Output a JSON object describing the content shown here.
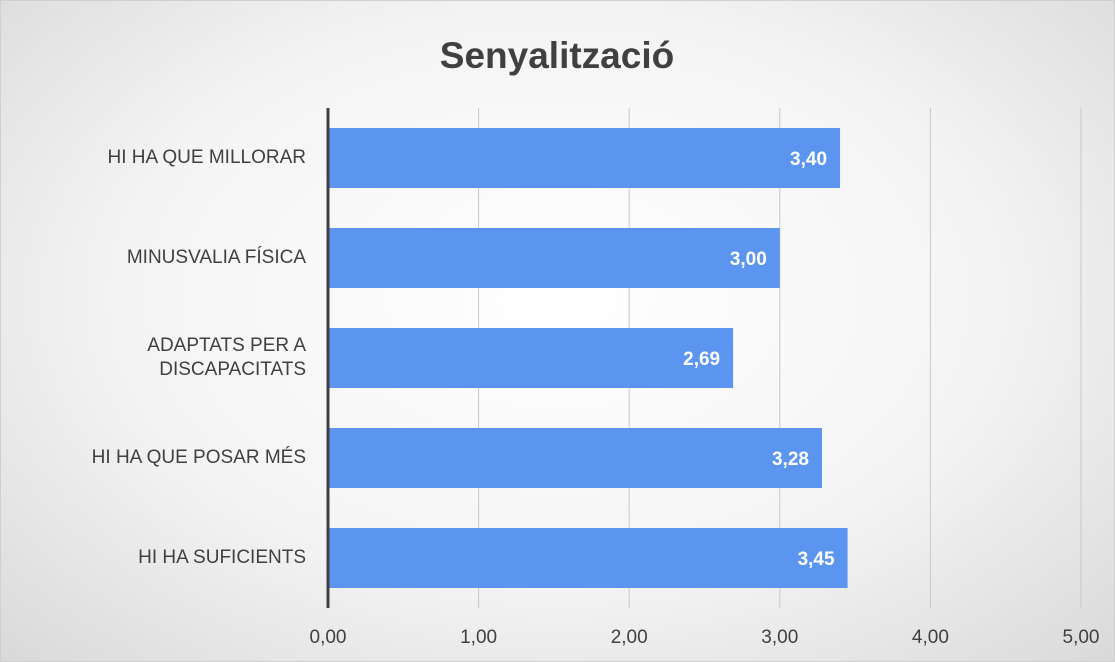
{
  "chart_data": {
    "type": "bar",
    "orientation": "horizontal",
    "title": "Senyalització",
    "categories": [
      "HI HA QUE MILLORAR",
      "MINUSVALIA FÍSICA",
      "ADAPTATS PER A\nDISCAPACITATS",
      "HI HA QUE POSAR MÉS",
      "HI HA SUFICIENTS"
    ],
    "values": [
      3.4,
      3.0,
      2.69,
      3.28,
      3.45
    ],
    "value_labels": [
      "3,40",
      "3,00",
      "2,69",
      "3,28",
      "3,45"
    ],
    "color": "#5b95f0",
    "xlim": [
      0,
      5
    ],
    "xticks": [
      {
        "value": 0,
        "label": "0,00"
      },
      {
        "value": 1,
        "label": "1,00"
      },
      {
        "value": 2,
        "label": "2,00"
      },
      {
        "value": 3,
        "label": "3,00"
      },
      {
        "value": 4,
        "label": "4,00"
      },
      {
        "value": 5,
        "label": "5,00"
      }
    ],
    "grid": true
  }
}
